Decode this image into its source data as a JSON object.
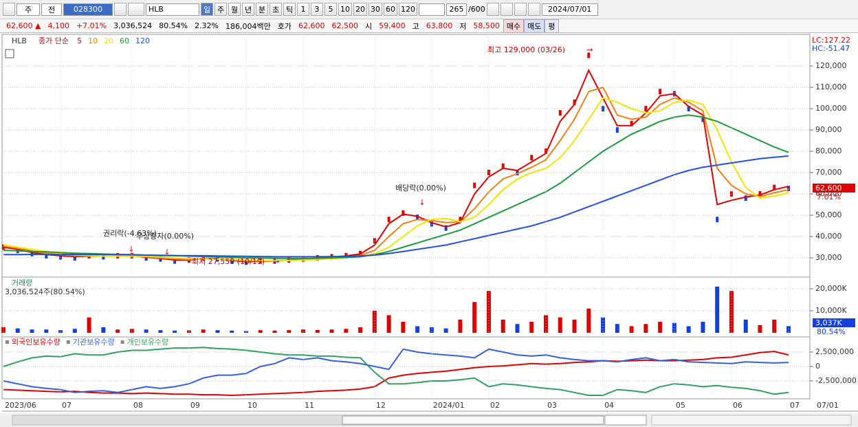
{
  "toolbar": {
    "market": "주",
    "scope": "전",
    "code": "028300",
    "name": "HLB",
    "periods": [
      "일",
      "주",
      "월",
      "년",
      "분",
      "초",
      "틱"
    ],
    "intervals": [
      "1",
      "3",
      "5",
      "10",
      "20",
      "30",
      "60",
      "120"
    ],
    "count": "265",
    "max": "/600",
    "date": "2024/07/01"
  },
  "quote": {
    "price": "62,600 ▲",
    "change": "4,100",
    "change_pct": "+7.01%",
    "volume": "3,036,524",
    "volume_ratio": "80.54%",
    "turnover": "2.32%",
    "amount": "186,004백만",
    "ask_label": "호가",
    "ask": "62,600",
    "bid": "62,500",
    "open_label": "시",
    "open": "59,400",
    "high_label": "고",
    "high": "63,800",
    "low_label": "저",
    "low": "58,500",
    "buy": "매수",
    "sell": "매도",
    "eval": "평"
  },
  "chart_data": [
    {
      "type": "line",
      "name": "HLB",
      "legend_title": "종가 단순",
      "lc_label": "LC:127.22",
      "hc_label": "HC:-51.47",
      "current_label": "62,600",
      "current_change": "7.01%",
      "categories": [
        "2023/06",
        null,
        null,
        null,
        "07",
        null,
        null,
        null,
        null,
        "08",
        null,
        null,
        null,
        "09",
        null,
        null,
        null,
        "10",
        null,
        null,
        null,
        "11",
        null,
        null,
        null,
        null,
        "12",
        null,
        null,
        null,
        "2024/01",
        null,
        null,
        null,
        "02",
        null,
        null,
        null,
        "03",
        null,
        null,
        null,
        "04",
        null,
        null,
        null,
        null,
        "05",
        null,
        null,
        null,
        "06",
        null,
        null,
        null,
        "07"
      ],
      "x_end_label": "07/01",
      "values": [
        35000,
        33500,
        32000,
        31000,
        30500,
        30000,
        31000,
        30500,
        31000,
        31000,
        30000,
        29500,
        28500,
        29000,
        30000,
        29500,
        28500,
        28000,
        28500,
        28500,
        29000,
        29500,
        30000,
        30500,
        31000,
        32000,
        38000,
        48000,
        51000,
        49000,
        46000,
        44000,
        48000,
        64000,
        70000,
        73000,
        70000,
        77000,
        80000,
        98000,
        103000,
        125000,
        100000,
        90000,
        93000,
        100000,
        108000,
        107000,
        100000,
        95000,
        48000,
        60000,
        58000,
        60000,
        63000,
        62600
      ],
      "up_color": "#e00000",
      "down_color": "#1040e0",
      "series": [
        {
          "name": "5",
          "color": "#e00000",
          "values": [
            35000,
            34000,
            32500,
            31500,
            31000,
            30500,
            30800,
            30800,
            30900,
            31000,
            30300,
            29700,
            29000,
            29000,
            29700,
            29600,
            28800,
            28200,
            28400,
            28500,
            28900,
            29400,
            29900,
            30400,
            30900,
            31800,
            36000,
            46000,
            50500,
            49500,
            46500,
            44500,
            46500,
            60000,
            68000,
            72000,
            71000,
            75000,
            79000,
            94000,
            102000,
            118000,
            105000,
            92000,
            92000,
            98000,
            106000,
            107000,
            101000,
            97000,
            55000,
            57000,
            58500,
            59500,
            62000,
            63500
          ]
        },
        {
          "name": "10",
          "color": "#f08010",
          "values": [
            35500,
            34500,
            33200,
            32200,
            31500,
            31000,
            30900,
            30800,
            30800,
            30900,
            30500,
            30000,
            29500,
            29300,
            29600,
            29500,
            29000,
            28600,
            28500,
            28500,
            28800,
            29100,
            29500,
            30000,
            30400,
            31100,
            33500,
            40000,
            46000,
            48000,
            47500,
            46500,
            46800,
            53000,
            61000,
            67000,
            69500,
            72500,
            76000,
            85000,
            95000,
            108000,
            110000,
            97000,
            95000,
            96000,
            102000,
            105000,
            103000,
            99000,
            72000,
            64000,
            60000,
            58700,
            60500,
            62000
          ]
        },
        {
          "name": "20",
          "color": "#f2e600",
          "values": [
            36000,
            35000,
            34000,
            33000,
            32000,
            31500,
            31000,
            30800,
            30800,
            30800,
            30700,
            30400,
            30000,
            29700,
            29500,
            29400,
            29300,
            29000,
            28700,
            28600,
            28700,
            28900,
            29200,
            29600,
            30000,
            30500,
            32000,
            35000,
            40000,
            45000,
            48000,
            48500,
            47000,
            49000,
            55000,
            62000,
            67000,
            70000,
            72000,
            77000,
            85000,
            95000,
            105000,
            103000,
            100000,
            98000,
            99000,
            103000,
            104000,
            102000,
            90000,
            75000,
            63000,
            58000,
            59000,
            60500
          ]
        },
        {
          "name": "60",
          "color": "#1a9a3a",
          "values": [
            33500,
            33300,
            33000,
            32800,
            32500,
            32200,
            32000,
            31800,
            31600,
            31500,
            31300,
            31100,
            31000,
            30800,
            30600,
            30400,
            30200,
            30000,
            29900,
            29800,
            29700,
            29700,
            29800,
            30000,
            30200,
            30500,
            31500,
            33000,
            35000,
            37000,
            39000,
            41000,
            43000,
            46000,
            49000,
            52000,
            55000,
            58000,
            61000,
            65000,
            70000,
            75000,
            80000,
            84000,
            88000,
            91000,
            94000,
            96000,
            97000,
            96000,
            94000,
            91000,
            88000,
            85000,
            82000,
            79500
          ]
        },
        {
          "name": "120",
          "color": "#2050e0",
          "values": [
            31500,
            31500,
            31600,
            31600,
            31600,
            31600,
            31500,
            31500,
            31500,
            31400,
            31300,
            31200,
            31100,
            31000,
            31000,
            30900,
            30800,
            30700,
            30600,
            30500,
            30500,
            30500,
            30500,
            30600,
            30700,
            30900,
            31300,
            32000,
            33000,
            34000,
            35000,
            36000,
            37500,
            39000,
            40500,
            42000,
            43500,
            45000,
            47000,
            49000,
            51500,
            54000,
            56500,
            59000,
            61500,
            64000,
            66500,
            69000,
            71000,
            72500,
            73500,
            74500,
            75500,
            76500,
            77200,
            77800
          ]
        }
      ],
      "ylim": [
        21290,
        134190
      ],
      "yticks": [
        {
          "value": 30000,
          "label": "30,000"
        },
        {
          "value": 40000,
          "label": "40,000"
        },
        {
          "value": 50000,
          "label": "50,000"
        },
        {
          "value": 60000,
          "label": "60,000"
        },
        {
          "value": 70000,
          "label": "70,000"
        },
        {
          "value": 80000,
          "label": "80,000"
        },
        {
          "value": 90000,
          "label": "90,000"
        },
        {
          "value": 100000,
          "label": "100,000"
        },
        {
          "value": 110000,
          "label": "110,000"
        },
        {
          "value": 120000,
          "label": "120,000"
        }
      ],
      "grid": true,
      "annotations": [
        "최고 129,000 (03/26)",
        "최저 27,550 (10/19)",
        "권리락(-4.63%)",
        "무상증자(0.00%)",
        "배당락(0.00%)"
      ]
    },
    {
      "type": "bar",
      "title": "거래량",
      "subtitle": "3,036,524주(80.54%)",
      "current_label": "3,037K",
      "current_pct": "80.54%",
      "values": [
        2500,
        2000,
        1500,
        1500,
        1200,
        1800,
        7000,
        2500,
        1500,
        1800,
        1500,
        1200,
        1000,
        1100,
        1500,
        1200,
        1000,
        800,
        1200,
        1000,
        1200,
        1500,
        1300,
        1500,
        1800,
        2500,
        10000,
        8000,
        5000,
        3000,
        2500,
        2000,
        6000,
        14000,
        19000,
        6000,
        4000,
        5000,
        8000,
        7000,
        6000,
        11000,
        7000,
        4000,
        3000,
        4000,
        5000,
        4500,
        3000,
        5000,
        21000,
        19000,
        6000,
        3500,
        6000,
        3037
      ],
      "ylim": [
        0,
        24700
      ],
      "yticks": [
        {
          "value": 10000,
          "label": "10,000K"
        },
        {
          "value": 20000,
          "label": "20,000K"
        }
      ],
      "grid": true
    },
    {
      "type": "line",
      "series": [
        {
          "name": "외국인보유수량",
          "color": "#e00000",
          "values": [
            -4000000,
            -4100000,
            -4200000,
            -4300000,
            -4400000,
            -4300000,
            -4500000,
            -4600000,
            -4600000,
            -4700000,
            -4600000,
            -4700000,
            -4800000,
            -4800000,
            -4900000,
            -4900000,
            -5000000,
            -4900000,
            -4800000,
            -4700000,
            -4600000,
            -4500000,
            -4300000,
            -4200000,
            -4100000,
            -3900000,
            -3500000,
            -2000000,
            -1500000,
            -1200000,
            -1000000,
            -800000,
            -500000,
            -200000,
            0,
            100000,
            300000,
            500000,
            400000,
            500000,
            700000,
            800000,
            1000000,
            900000,
            1000000,
            1100000,
            1000000,
            1000000,
            1100000,
            1200000,
            1500000,
            1600000,
            2000000,
            2400000,
            2600000,
            2000000
          ]
        },
        {
          "name": "기관보유수량",
          "color": "#3060e0",
          "values": [
            -2500000,
            -3000000,
            -3500000,
            -3800000,
            -4000000,
            -4500000,
            -4300000,
            -4200000,
            -4500000,
            -4000000,
            -3500000,
            -3800000,
            -3500000,
            -3000000,
            -2000000,
            -1500000,
            -1500000,
            -1200000,
            0,
            500000,
            1500000,
            1200000,
            1500000,
            1000000,
            800000,
            500000,
            0,
            -500000,
            3000000,
            2500000,
            2200000,
            2000000,
            1800000,
            1500000,
            3000000,
            2500000,
            2000000,
            1800000,
            2000000,
            1500000,
            1200000,
            1000000,
            1000000,
            800000,
            1200000,
            1500000,
            1000000,
            1200000,
            800000,
            700000,
            600000,
            500000,
            800000,
            700000,
            600000,
            700000
          ]
        },
        {
          "name": "개인보유수량",
          "color": "#30a060",
          "values": [
            0,
            800000,
            1500000,
            1800000,
            1700000,
            2200000,
            2000000,
            2000000,
            2500000,
            2800000,
            2800000,
            3000000,
            3200000,
            3200000,
            3300000,
            3100000,
            3000000,
            2800000,
            2500000,
            2200000,
            2000000,
            2000000,
            1800000,
            1800000,
            1600000,
            1500000,
            -1000000,
            -3000000,
            -3000000,
            -2800000,
            -2500000,
            -2500000,
            -2300000,
            -2000000,
            -3500000,
            -3000000,
            -3200000,
            -3500000,
            -3800000,
            -4000000,
            -4500000,
            -5000000,
            -5000000,
            -4000000,
            -4200000,
            -4500000,
            -3500000,
            -3000000,
            -3200000,
            -3500000,
            -3300000,
            -3600000,
            -3800000,
            -4200000,
            -4800000,
            -4500000
          ]
        }
      ],
      "ylim": [
        -5600000,
        4880000
      ],
      "yticks": [
        {
          "value": 2500000,
          "label": "2,500,000"
        },
        0,
        {
          "value": -2500000,
          "label": "-2,500,000"
        }
      ],
      "grid": true
    }
  ]
}
